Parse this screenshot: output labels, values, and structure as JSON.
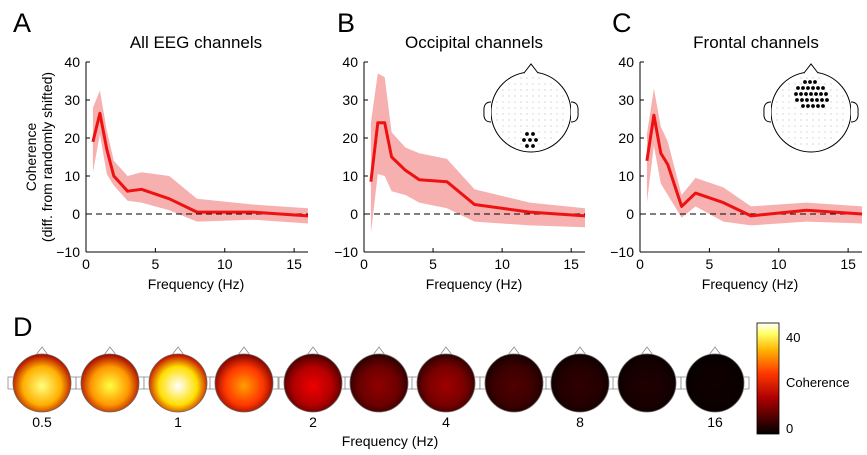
{
  "chart_data": [
    {
      "type": "line",
      "panel": "A",
      "title": "All EEG channels",
      "xlabel": "Frequency (Hz)",
      "ylabel": "Coherence\n(diff. from randomly shifted)",
      "xlim": [
        0,
        16
      ],
      "ylim": [
        -10,
        40
      ],
      "xticks": [
        "0",
        "5",
        "10",
        "15"
      ],
      "yticks": [
        "−10",
        "0",
        "10",
        "20",
        "30",
        "40"
      ],
      "reference_line": 0,
      "x": [
        0.5,
        1,
        1.5,
        2,
        3,
        4,
        6,
        8,
        12,
        16
      ],
      "series": [
        {
          "values": [
            19,
            26.5,
            17,
            10,
            6,
            6.5,
            4,
            0.5,
            0.5,
            -0.5
          ],
          "lower": [
            11,
            21,
            10.5,
            7.5,
            3.5,
            3,
            1,
            -2,
            -1.5,
            -2.5
          ],
          "upper": [
            28,
            32.5,
            22,
            14,
            10,
            11,
            10,
            4,
            2.5,
            1.5
          ]
        }
      ],
      "line_color": "#ee1111",
      "band_color": "#f7b0b0"
    },
    {
      "type": "line",
      "panel": "B",
      "title": "Occipital channels",
      "xlabel": "Frequency (Hz)",
      "xlim": [
        0,
        16
      ],
      "ylim": [
        -10,
        40
      ],
      "xticks": [
        "0",
        "5",
        "10",
        "15"
      ],
      "yticks": [
        "−10",
        "0",
        "10",
        "20",
        "30",
        "40"
      ],
      "reference_line": 0,
      "x": [
        0.5,
        1,
        1.5,
        2,
        3,
        4,
        6,
        8,
        12,
        16
      ],
      "series": [
        {
          "values": [
            8.5,
            24,
            24,
            15,
            11.5,
            9,
            8.5,
            2.5,
            0.5,
            -0.5
          ],
          "lower": [
            -5,
            10.5,
            10,
            6,
            5,
            3,
            1.5,
            -2,
            -3,
            -3.5
          ],
          "upper": [
            24,
            37,
            36,
            21.5,
            17.5,
            16,
            14.5,
            6.5,
            3,
            1.5
          ]
        }
      ],
      "line_color": "#ee1111",
      "band_color": "#f7b0b0"
    },
    {
      "type": "line",
      "panel": "C",
      "title": "Frontal channels",
      "xlabel": "Frequency (Hz)",
      "xlim": [
        0,
        16
      ],
      "ylim": [
        -10,
        40
      ],
      "xticks": [
        "0",
        "5",
        "10",
        "15"
      ],
      "yticks": [
        "−10",
        "0",
        "10",
        "20",
        "30",
        "40"
      ],
      "reference_line": 0,
      "x": [
        0.5,
        1,
        1.5,
        2,
        3,
        4,
        6,
        8,
        12,
        16
      ],
      "series": [
        {
          "values": [
            14,
            26,
            16,
            13,
            2,
            5.5,
            3,
            -0.5,
            1,
            0
          ],
          "lower": [
            3,
            18,
            8,
            5,
            -1,
            2,
            -2,
            -3,
            -2,
            -2.5
          ],
          "upper": [
            21,
            33,
            23,
            19,
            5,
            9.5,
            7,
            2,
            3,
            2
          ]
        }
      ],
      "line_color": "#ee1111",
      "band_color": "#f7b0b0"
    },
    {
      "type": "heatmap",
      "panel": "D",
      "xlabel": "Frequency (Hz)",
      "frequency_labels": [
        "0.5",
        "1",
        "2",
        "4",
        "8",
        "16"
      ],
      "colorbar": {
        "label": "Coherence",
        "max": "40",
        "min": "0"
      },
      "maps": [
        {
          "frequency": "0.5",
          "peak": 36
        },
        {
          "frequency": "0.75",
          "peak": 34
        },
        {
          "frequency": "1",
          "peak": 40
        },
        {
          "frequency": "1.5",
          "peak": 26
        },
        {
          "frequency": "2",
          "peak": 15
        },
        {
          "frequency": "3",
          "peak": 9
        },
        {
          "frequency": "4",
          "peak": 10
        },
        {
          "frequency": "6",
          "peak": 5
        },
        {
          "frequency": "8",
          "peak": 3
        },
        {
          "frequency": "12",
          "peak": 2
        },
        {
          "frequency": "16",
          "peak": 1
        }
      ]
    }
  ],
  "panel_letters": [
    "A",
    "B",
    "C",
    "D"
  ],
  "insets": {
    "B": {
      "region": "occipital",
      "highlight_color": "#000000"
    },
    "C": {
      "region": "frontal",
      "highlight_color": "#000000"
    }
  }
}
